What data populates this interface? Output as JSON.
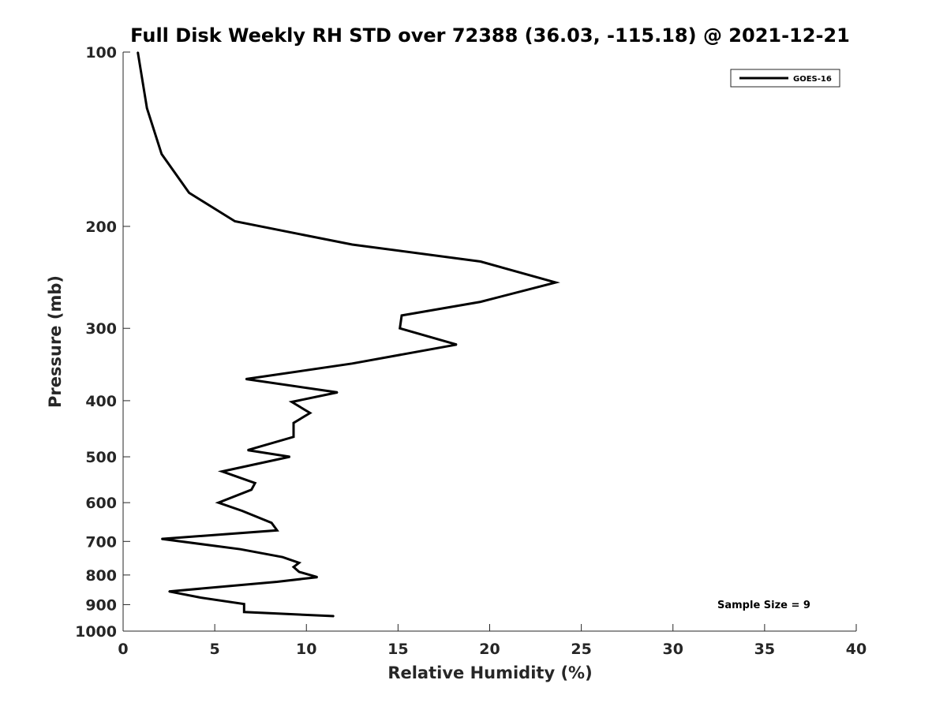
{
  "chart_data": {
    "type": "line",
    "title": "Full Disk Weekly RH STD over 72388 (36.03, -115.18) @ 2021-12-21",
    "xlabel": "Relative Humidity (%)",
    "ylabel": "Pressure (mb)",
    "xlim": [
      0,
      40
    ],
    "ylim": [
      100,
      1000
    ],
    "y_scale": "log",
    "y_reversed": true,
    "xticks": [
      0,
      5,
      10,
      15,
      20,
      25,
      30,
      35,
      40
    ],
    "xtick_labels": [
      "0",
      "5",
      "10",
      "15",
      "20",
      "25",
      "30",
      "35",
      "40"
    ],
    "yticks": [
      100,
      200,
      300,
      400,
      500,
      600,
      700,
      800,
      900,
      1000
    ],
    "ytick_labels": [
      "100",
      "200",
      "300",
      "400",
      "500",
      "600",
      "700",
      "800",
      "900",
      "1000"
    ],
    "grid": false,
    "legend_position": "top-right",
    "series": [
      {
        "name": "GOES-16",
        "color": "#000000",
        "x": [
          0.8,
          1.3,
          2.1,
          3.6,
          6.1,
          12.5,
          19.5,
          23.6,
          19.5,
          15.2,
          15.1,
          18.2,
          12.5,
          6.7,
          11.7,
          9.2,
          10.2,
          9.3,
          9.3,
          6.8,
          9.1,
          5.4,
          7.2,
          7.0,
          5.2,
          6.5,
          8.1,
          8.4,
          2.1,
          6.4,
          8.7,
          9.6,
          9.3,
          9.6,
          10.6,
          8.4,
          2.5,
          4.2,
          6.6,
          6.6,
          11.5
        ],
        "y": [
          100,
          125,
          150,
          175,
          196,
          215,
          230,
          250,
          270,
          285,
          300,
          320,
          345,
          367,
          387,
          402,
          420,
          437,
          462,
          487,
          500,
          530,
          555,
          570,
          600,
          620,
          650,
          670,
          693,
          722,
          745,
          762,
          775,
          790,
          807,
          822,
          854,
          875,
          898,
          927,
          942
        ]
      }
    ],
    "legend": [
      "GOES-16"
    ],
    "annotations": [
      "Sample Size = 9"
    ]
  }
}
